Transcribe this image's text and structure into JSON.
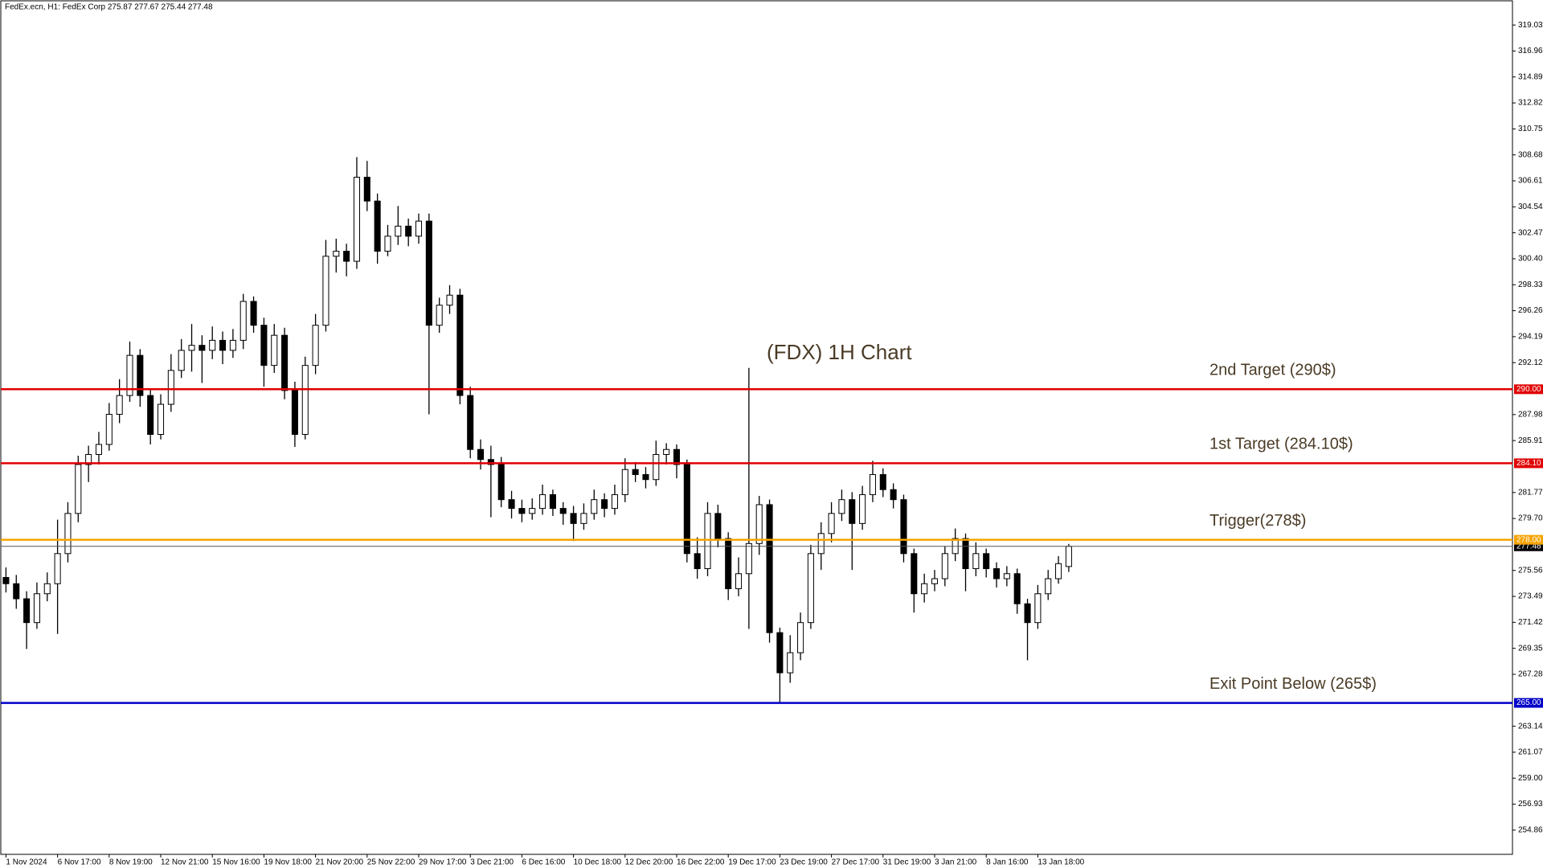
{
  "chart_data": {
    "type": "candlestick",
    "header": "FedEx.ecn, H1:  FedEx Corp  275.87 277.67 275.44 277.48",
    "title": "(FDX) 1H Chart",
    "open": [
      275.0,
      274.5,
      273.3,
      271.4,
      273.7,
      274.5,
      276.9,
      280.1,
      284.0,
      284.8,
      285.6,
      288.0,
      289.5,
      292.7,
      289.5,
      286.4,
      288.8,
      291.5,
      293.1,
      293.5,
      293.1,
      293.9,
      293.1,
      293.9,
      297.0,
      295.1,
      291.9,
      294.3,
      289.9,
      286.4,
      291.9,
      295.1,
      300.6,
      301.0,
      300.2,
      306.9,
      305.0,
      301.0,
      302.2,
      303.0,
      302.2,
      303.4,
      295.1,
      296.7,
      297.5,
      289.5,
      285.2,
      284.4,
      284.0,
      281.2,
      280.5,
      280.1,
      280.5,
      281.6,
      280.5,
      280.1,
      279.3,
      280.1,
      281.2,
      280.5,
      281.6,
      283.6,
      283.2,
      282.8,
      284.8,
      285.2,
      284.0,
      276.9,
      275.7,
      280.1,
      278.1,
      274.1,
      275.3,
      277.7,
      280.8,
      270.6,
      267.4,
      269.0,
      271.4,
      276.9,
      278.5,
      280.1,
      281.2,
      279.3,
      281.6,
      283.2,
      282.0,
      281.2,
      276.9,
      273.7,
      274.5,
      274.9,
      276.9,
      278.1,
      275.7,
      276.9,
      275.7,
      274.9,
      275.3,
      272.9,
      271.4,
      273.7,
      274.9,
      275.87
    ],
    "high": [
      275.8,
      275.2,
      273.9,
      274.6,
      275.4,
      279.6,
      281.0,
      284.7,
      285.5,
      286.6,
      288.9,
      290.8,
      293.8,
      293.2,
      290.0,
      289.6,
      292.8,
      294.0,
      295.2,
      294.3,
      295.0,
      294.6,
      294.8,
      297.6,
      297.4,
      295.7,
      295.2,
      294.9,
      290.6,
      292.6,
      296.0,
      301.9,
      302.0,
      301.6,
      308.5,
      308.2,
      305.6,
      303.1,
      304.6,
      303.6,
      304.0,
      304.0,
      297.3,
      298.3,
      298.0,
      290.2,
      286.0,
      285.5,
      284.6,
      281.9,
      281.2,
      281.3,
      282.4,
      282.0,
      281.0,
      280.7,
      280.9,
      282.0,
      281.7,
      282.4,
      284.5,
      284.2,
      283.8,
      285.9,
      285.7,
      285.6,
      284.4,
      278.2,
      281.0,
      280.8,
      278.6,
      276.6,
      291.7,
      281.5,
      281.2,
      271.0,
      270.4,
      272.2,
      277.6,
      279.4,
      281.0,
      282.0,
      281.8,
      282.3,
      284.3,
      283.7,
      282.5,
      281.6,
      277.3,
      275.3,
      275.6,
      277.5,
      278.9,
      278.5,
      277.8,
      277.3,
      276.2,
      275.9,
      275.7,
      273.3,
      274.4,
      275.6,
      276.7,
      277.67
    ],
    "low": [
      273.8,
      272.5,
      269.3,
      270.9,
      273.1,
      270.5,
      276.2,
      279.4,
      282.6,
      284.0,
      285.1,
      287.3,
      289.0,
      288.6,
      285.6,
      286.0,
      288.2,
      290.9,
      291.4,
      290.5,
      292.4,
      292.0,
      292.5,
      293.2,
      294.5,
      290.2,
      291.3,
      289.2,
      285.4,
      286.0,
      291.2,
      294.6,
      299.3,
      299.0,
      299.6,
      304.2,
      300.0,
      300.6,
      301.5,
      301.4,
      301.6,
      288.0,
      294.5,
      296.0,
      288.8,
      284.5,
      283.6,
      279.8,
      280.6,
      279.7,
      279.4,
      279.6,
      280.0,
      279.9,
      279.2,
      277.9,
      278.8,
      279.6,
      279.8,
      280.0,
      281.0,
      282.6,
      282.1,
      282.3,
      284.0,
      282.9,
      276.2,
      274.9,
      275.1,
      277.4,
      273.2,
      273.5,
      270.9,
      276.8,
      269.8,
      265.0,
      266.6,
      268.4,
      270.9,
      275.6,
      277.8,
      279.5,
      275.6,
      278.8,
      281.0,
      281.4,
      280.5,
      276.2,
      272.2,
      273.0,
      273.9,
      274.3,
      276.3,
      273.9,
      275.1,
      275.0,
      274.2,
      274.3,
      272.1,
      268.4,
      270.9,
      273.2,
      274.5,
      275.44
    ],
    "close": [
      274.5,
      273.3,
      271.4,
      273.7,
      274.5,
      276.9,
      280.1,
      284.0,
      284.8,
      285.6,
      288.0,
      289.5,
      292.7,
      289.5,
      286.4,
      288.8,
      291.5,
      293.1,
      293.5,
      293.1,
      293.9,
      293.1,
      293.9,
      297.0,
      295.1,
      291.9,
      294.3,
      289.9,
      286.4,
      291.9,
      295.1,
      300.6,
      301.0,
      300.2,
      306.9,
      305.0,
      301.0,
      302.2,
      303.0,
      302.2,
      303.4,
      295.1,
      296.7,
      297.5,
      289.5,
      285.2,
      284.4,
      284.0,
      281.2,
      280.5,
      280.1,
      280.5,
      281.6,
      280.5,
      280.1,
      279.3,
      280.1,
      281.2,
      280.5,
      281.6,
      283.6,
      283.2,
      282.8,
      284.8,
      285.2,
      284.0,
      276.9,
      275.7,
      280.1,
      278.1,
      274.1,
      275.3,
      277.7,
      280.8,
      270.6,
      267.4,
      269.0,
      271.4,
      276.9,
      278.5,
      280.1,
      281.2,
      279.3,
      281.6,
      283.2,
      282.0,
      281.2,
      276.9,
      273.7,
      274.5,
      274.9,
      276.9,
      278.1,
      275.7,
      276.9,
      275.7,
      274.9,
      275.3,
      272.9,
      271.4,
      273.7,
      274.9,
      276.1,
      277.48
    ],
    "xlim": [
      -0.5,
      146
    ],
    "xticks": [
      {
        "value": 0,
        "label": "1 Nov 2024"
      },
      {
        "value": 5,
        "label": "6 Nov 17:00"
      },
      {
        "value": 10,
        "label": "8 Nov 19:00"
      },
      {
        "value": 15,
        "label": "12 Nov 21:00"
      },
      {
        "value": 20,
        "label": "15 Nov 16:00"
      },
      {
        "value": 25,
        "label": "19 Nov 18:00"
      },
      {
        "value": 30,
        "label": "21 Nov 20:00"
      },
      {
        "value": 35,
        "label": "25 Nov 22:00"
      },
      {
        "value": 40,
        "label": "29 Nov 17:00"
      },
      {
        "value": 45,
        "label": "3 Dec 21:00"
      },
      {
        "value": 50,
        "label": "6 Dec 16:00"
      },
      {
        "value": 55,
        "label": "10 Dec 18:00"
      },
      {
        "value": 60,
        "label": "12 Dec 20:00"
      },
      {
        "value": 65,
        "label": "16 Dec 22:00"
      },
      {
        "value": 70,
        "label": "19 Dec 17:00"
      },
      {
        "value": 75,
        "label": "23 Dec 19:00"
      },
      {
        "value": 80,
        "label": "27 Dec 17:00"
      },
      {
        "value": 85,
        "label": "31 Dec 19:00"
      },
      {
        "value": 90,
        "label": "3 Jan 21:00"
      },
      {
        "value": 95,
        "label": "8 Jan 16:00"
      },
      {
        "value": 100,
        "label": "13 Jan 18:00"
      }
    ],
    "ylim": [
      252.93,
      320.96
    ],
    "yticks": [
      319.03,
      316.96,
      314.89,
      312.82,
      310.75,
      308.68,
      306.61,
      304.54,
      302.47,
      {
        "value": 300.4,
        "label": "300.40"
      },
      298.33,
      296.26,
      294.19,
      292.12,
      287.98,
      285.91,
      281.77,
      {
        "value": 279.7,
        "label": "279.70"
      },
      275.56,
      273.49,
      271.42,
      269.35,
      267.28,
      263.14,
      261.07,
      {
        "value": 259,
        "label": "259.00"
      },
      256.93,
      254.86
    ],
    "last_price": {
      "value": 277.48,
      "label": "277.48"
    },
    "levels": [
      {
        "value": 290,
        "label": "290.00",
        "text": "2nd Target (290$)",
        "color": "#e00000"
      },
      {
        "value": 284.1,
        "label": "284.10",
        "text": "1st Target (284.10$)",
        "color": "#e00000"
      },
      {
        "value": 278,
        "label": "278.00",
        "text": "Trigger(278$)",
        "color": "#f5a300"
      },
      {
        "value": 265,
        "label": "265.00",
        "text": "Exit Point Below (265$)",
        "color": "#0000c8"
      }
    ]
  }
}
